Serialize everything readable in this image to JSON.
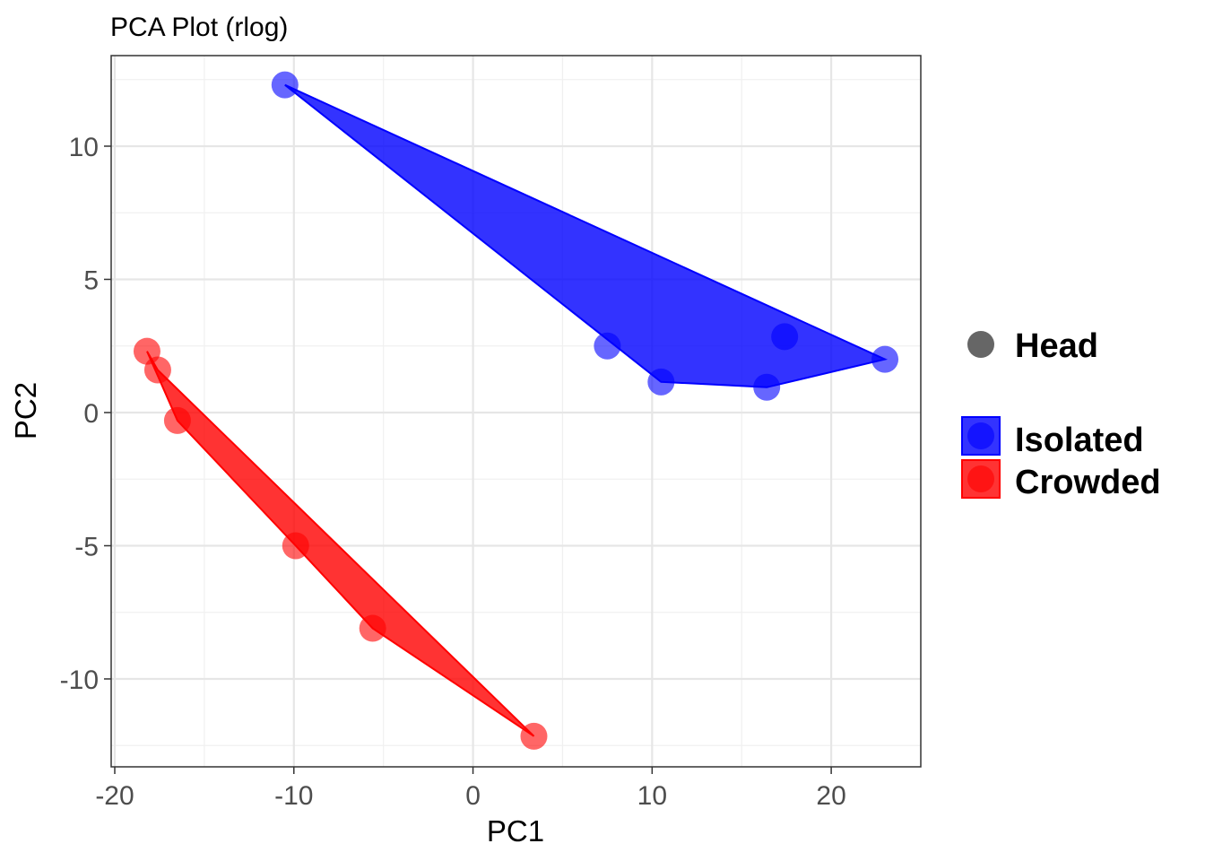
{
  "chart_data": {
    "type": "scatter",
    "title": "PCA Plot (rlog)",
    "xlabel": "PC1",
    "ylabel": "PC2",
    "xlim": [
      -20.2,
      25.0
    ],
    "ylim": [
      -13.3,
      13.4
    ],
    "x_ticks": [
      -20,
      -10,
      0,
      10,
      20
    ],
    "y_ticks": [
      -10,
      -5,
      0,
      5,
      10
    ],
    "x_tick_labels": [
      "-20",
      "-10",
      "0",
      "10",
      "20"
    ],
    "y_tick_labels": [
      "-10",
      "-5",
      "0",
      "5",
      "10"
    ],
    "grid": true,
    "legend_position": "right",
    "shape_legend": {
      "label": "Head",
      "color": "#666666"
    },
    "series": [
      {
        "name": "Isolated",
        "color": "#0000FF",
        "points": [
          {
            "x": -10.5,
            "y": 12.3
          },
          {
            "x": 7.5,
            "y": 2.5
          },
          {
            "x": 10.5,
            "y": 1.15
          },
          {
            "x": 16.4,
            "y": 0.95
          },
          {
            "x": 17.4,
            "y": 2.85
          },
          {
            "x": 23.0,
            "y": 2.0
          }
        ],
        "hull": [
          {
            "x": -10.5,
            "y": 12.3
          },
          {
            "x": 23.0,
            "y": 2.0
          },
          {
            "x": 16.4,
            "y": 0.95
          },
          {
            "x": 10.5,
            "y": 1.15
          }
        ]
      },
      {
        "name": "Crowded",
        "color": "#FF0000",
        "points": [
          {
            "x": -18.2,
            "y": 2.3
          },
          {
            "x": -17.6,
            "y": 1.6
          },
          {
            "x": -16.5,
            "y": -0.3
          },
          {
            "x": -9.9,
            "y": -5.0
          },
          {
            "x": -5.6,
            "y": -8.1
          },
          {
            "x": 3.4,
            "y": -12.15
          }
        ],
        "hull": [
          {
            "x": -18.2,
            "y": 2.3
          },
          {
            "x": -17.6,
            "y": 1.6
          },
          {
            "x": 3.4,
            "y": -12.15
          },
          {
            "x": -5.6,
            "y": -8.1
          },
          {
            "x": -9.9,
            "y": -5.0
          },
          {
            "x": -16.5,
            "y": -0.3
          }
        ]
      }
    ]
  }
}
